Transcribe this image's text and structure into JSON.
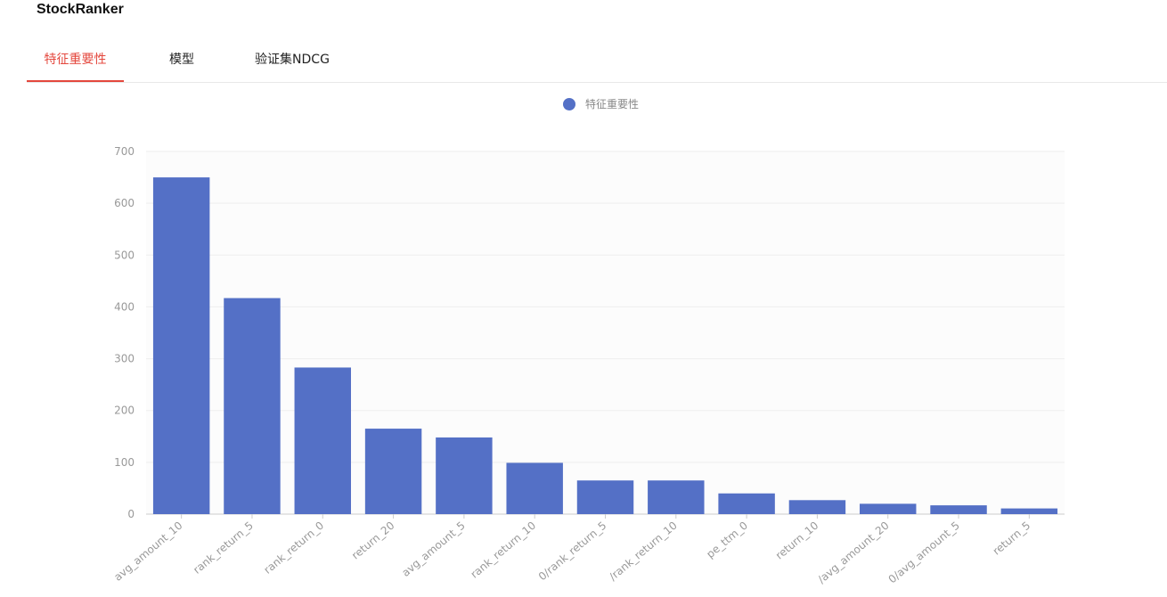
{
  "header": {
    "title": "StockRanker"
  },
  "tabs": [
    {
      "label": "特征重要性",
      "active": true
    },
    {
      "label": "模型",
      "active": false
    },
    {
      "label": "验证集NDCG",
      "active": false
    }
  ],
  "colors": {
    "accent": "#e4473d",
    "bar": "#5470c6",
    "grid": "#eeeeee",
    "plot_bg": "#fcfcfc"
  },
  "chart_data": {
    "type": "bar",
    "legend": {
      "label": "特征重要性",
      "position": "top-center"
    },
    "categories": [
      "avg_amount_10",
      "rank_return_5",
      "rank_return_0",
      "return_20",
      "avg_amount_5",
      "rank_return_10",
      "0/rank_return_5",
      "/rank_return_10",
      "pe_ttm_0",
      "return_10",
      "/avg_amount_20",
      "0/avg_amount_5",
      "return_5"
    ],
    "series": [
      {
        "name": "特征重要性",
        "values": [
          650,
          417,
          283,
          165,
          148,
          99,
          65,
          65,
          40,
          27,
          20,
          17,
          11
        ]
      }
    ],
    "ylim": [
      0,
      700
    ],
    "yticks": [
      0,
      100,
      200,
      300,
      400,
      500,
      600,
      700
    ],
    "grid": true
  }
}
